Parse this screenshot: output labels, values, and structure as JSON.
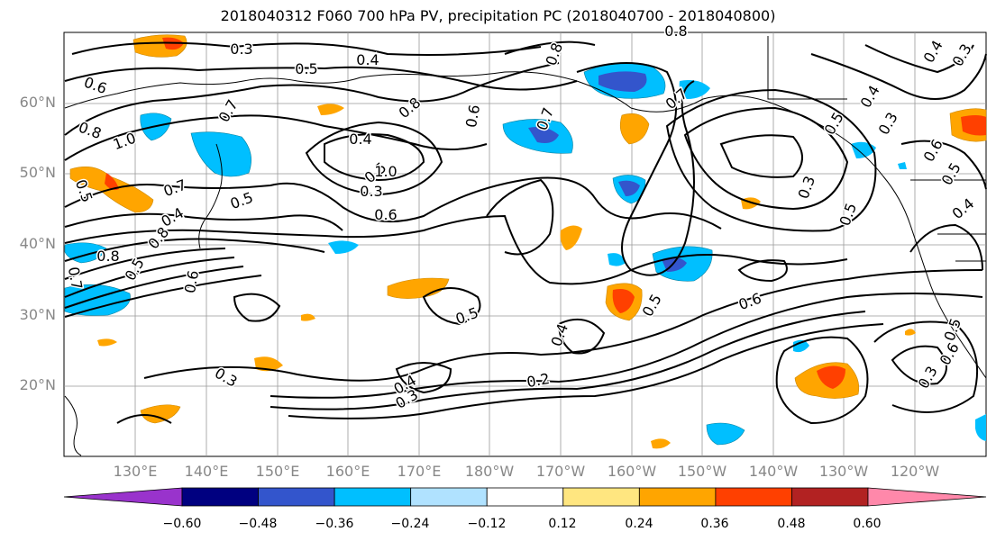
{
  "title": "2018040312 F060 700 hPa PV, precipitation PC (2018040700 - 2018040800)",
  "lat_labels": [
    "60°N",
    "50°N",
    "40°N",
    "30°N",
    "20°N"
  ],
  "lon_labels": [
    "130°E",
    "140°E",
    "150°E",
    "160°E",
    "170°E",
    "180°W",
    "170°W",
    "160°W",
    "150°W",
    "140°W",
    "130°W",
    "120°W"
  ],
  "colorbar": {
    "ticks": [
      "−0.60",
      "−0.48",
      "−0.36",
      "−0.24",
      "−0.12",
      "0.12",
      "0.24",
      "0.36",
      "0.48",
      "0.60"
    ],
    "colors": [
      "#9933cc",
      "#000080",
      "#3355cc",
      "#00bfff",
      "#b0e2ff",
      "#ffffff",
      "#ffe680",
      "#ffa500",
      "#ff4000",
      "#b22222",
      "#ff88aa"
    ]
  },
  "contour_labels": [
    "0.3",
    "0.5",
    "0.4",
    "0.8",
    "0.6",
    "0.7",
    "0.8",
    "0.6",
    "0.7",
    "0.8",
    "1.0",
    "0.4",
    "0.5",
    "0.3",
    "0.6",
    "0.5",
    "0.7",
    "0.5",
    "0.4",
    "0.8",
    "0.5",
    "0.6",
    "0.7",
    "0.8",
    "0.5",
    "0.4",
    "1.0",
    "0.8",
    "0.7",
    "0.5",
    "0.6",
    "0.5",
    "0.4",
    "0.3",
    "0.6",
    "0.5",
    "0.4",
    "0.3",
    "0.2",
    "0.3",
    "0.4",
    "0.3",
    "0.6",
    "0.5",
    "0.3",
    "0.5",
    "0.4",
    "0.3"
  ],
  "precip_anomaly_colors": {
    "pos_light": "#ffe680",
    "pos_mid": "#ffa500",
    "pos_strong": "#ff4000",
    "neg_light": "#b0e2ff",
    "neg_mid": "#00bfff",
    "neg_strong": "#3355cc"
  }
}
